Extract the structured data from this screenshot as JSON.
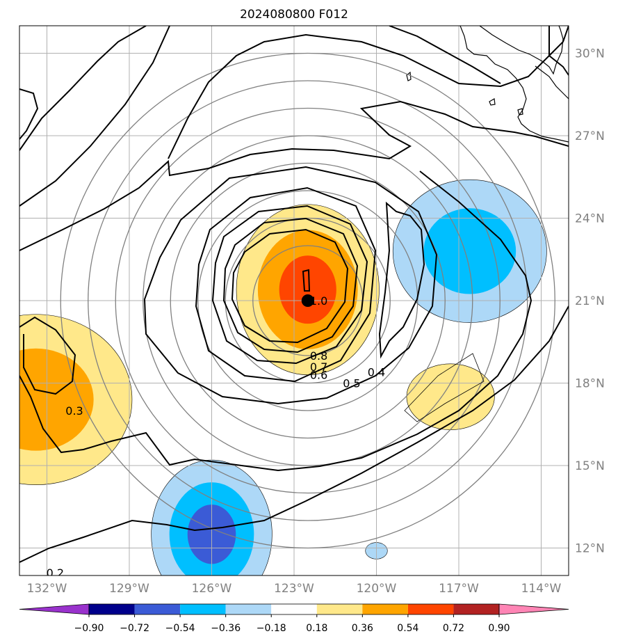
{
  "chart_data": {
    "type": "contour-map",
    "title": "2024080800 F012",
    "projection": "lat-lon",
    "lon_range": [
      -133,
      -113
    ],
    "lat_range": [
      11,
      31
    ],
    "lon_ticks": [
      -132,
      -129,
      -126,
      -123,
      -120,
      -117,
      -114
    ],
    "lon_tick_labels": [
      "132°W",
      "129°W",
      "126°W",
      "123°W",
      "120°W",
      "117°W",
      "114°W"
    ],
    "lat_ticks": [
      12,
      15,
      18,
      21,
      24,
      27,
      30
    ],
    "lat_tick_labels": [
      "12°N",
      "15°N",
      "18°N",
      "21°N",
      "24°N",
      "27°N",
      "30°N"
    ],
    "grid": true,
    "center_marker": {
      "lon": -122.5,
      "lat": 21.0
    },
    "range_rings_deg": [
      2,
      3,
      4,
      5,
      6,
      7,
      8,
      9
    ],
    "contour_levels": [
      0.2,
      0.3,
      0.4,
      0.5,
      0.6,
      0.7,
      0.8,
      1.0
    ],
    "contour_labels": [
      {
        "text": "1.0",
        "lon": -122.1,
        "lat": 21.0
      },
      {
        "text": "0.8",
        "lon": -122.1,
        "lat": 19.0
      },
      {
        "text": "0.7",
        "lon": -122.1,
        "lat": 18.6
      },
      {
        "text": "0.6",
        "lon": -122.1,
        "lat": 18.3
      },
      {
        "text": "0.5",
        "lon": -120.9,
        "lat": 18.0
      },
      {
        "text": "0.4",
        "lon": -120.0,
        "lat": 18.4
      },
      {
        "text": "0.3",
        "lon": -131.0,
        "lat": 17.0
      },
      {
        "text": "0.2",
        "lon": -131.7,
        "lat": 11.1
      }
    ],
    "fill_anomalies": [
      {
        "name": "center-positive",
        "lon": -122.5,
        "lat": 21.4,
        "rlon": 2.6,
        "rlat": 3.1,
        "peak": 0.6
      },
      {
        "name": "west-positive",
        "lon": -132.4,
        "lat": 17.4,
        "rlon": 3.5,
        "rlat": 3.1,
        "peak": 0.45
      },
      {
        "name": "east-positive",
        "lon": -117.3,
        "lat": 17.5,
        "rlon": 1.6,
        "rlat": 1.2,
        "peak": 0.3
      },
      {
        "name": "east-negative",
        "lon": -116.6,
        "lat": 22.8,
        "rlon": 2.8,
        "rlat": 2.6,
        "peak": -0.45
      },
      {
        "name": "south-negative",
        "lon": -126.0,
        "lat": 12.5,
        "rlon": 2.2,
        "rlat": 2.7,
        "peak": -0.6
      },
      {
        "name": "small-negative",
        "lon": -120.0,
        "lat": 11.9,
        "rlon": 0.4,
        "rlat": 0.3,
        "peak": -0.25
      }
    ],
    "colorbar": {
      "orientation": "horizontal",
      "levels": [
        -0.9,
        -0.72,
        -0.54,
        -0.36,
        -0.18,
        0.18,
        0.36,
        0.54,
        0.72,
        0.9
      ],
      "tick_labels": [
        "−0.90",
        "−0.72",
        "−0.54",
        "−0.36",
        "−0.18",
        "0.18",
        "0.36",
        "0.54",
        "0.72",
        "0.90"
      ],
      "colors": [
        "#9932cc",
        "#00008b",
        "#3b5bd6",
        "#00bfff",
        "#add8f7",
        "#ffffff",
        "#ffe88a",
        "#ffa500",
        "#ff4500",
        "#b22222",
        "#ff85b5"
      ],
      "extend": "both"
    }
  }
}
